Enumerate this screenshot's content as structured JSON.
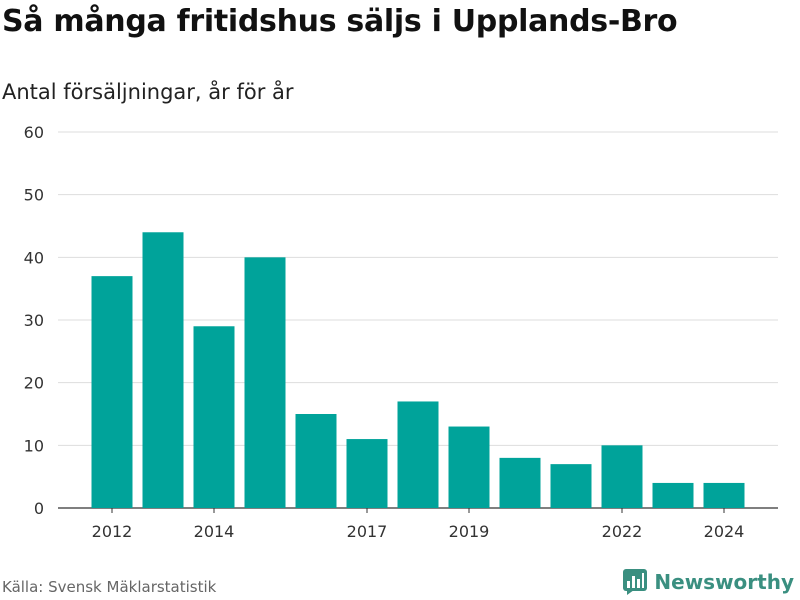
{
  "header": {
    "title": "Så många fritidshus säljs i Upplands-Bro",
    "subtitle": "Antal försäljningar, år för år"
  },
  "footer": {
    "source": "Källa: Svensk Mäklarstatistik",
    "brand": "Newsworthy"
  },
  "colors": {
    "bar": "#00a39a",
    "grid": "#dddddd",
    "axis": "#333333",
    "brand": "#3a8f80"
  },
  "chart_data": {
    "type": "bar",
    "title": "Så många fritidshus säljs i Upplands-Bro",
    "subtitle": "Antal försäljningar, år för år",
    "categories": [
      2012,
      2013,
      2014,
      2015,
      2016,
      2017,
      2018,
      2019,
      2020,
      2021,
      2022,
      2023,
      2024
    ],
    "values": [
      37,
      44,
      29,
      40,
      15,
      11,
      17,
      13,
      8,
      7,
      10,
      4,
      4
    ],
    "x_tick_labels": [
      "2012",
      "2014",
      "2017",
      "2019",
      "2022",
      "2024"
    ],
    "ylim": [
      0,
      60
    ],
    "y_ticks": [
      0,
      10,
      20,
      30,
      40,
      50,
      60
    ],
    "grid": true,
    "xlabel": "",
    "ylabel": ""
  }
}
